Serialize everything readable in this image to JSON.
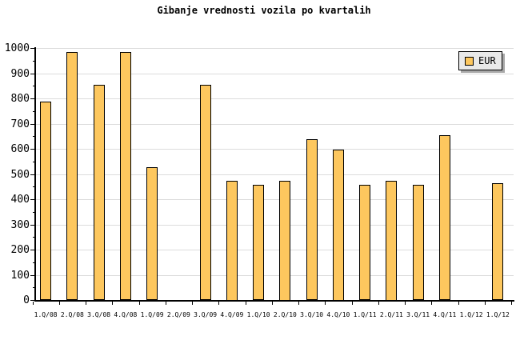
{
  "title": "Gibanje vrednosti vozila po kvartalih",
  "legend": {
    "label": "EUR"
  },
  "colors": {
    "bar_fill": "#FDC75E",
    "bar_border": "#000000",
    "gridline": "#DCDCDC",
    "axis": "#000000",
    "legend_bg": "#E9E9E9",
    "legend_shadow": "#A8A8A8",
    "background": "#FFFFFF",
    "text": "#000000"
  },
  "chart_data": {
    "type": "bar",
    "title": "Gibanje vrednosti vozila po kvartalih",
    "categories": [
      "1.Q/08",
      "2.Q/08",
      "3.Q/08",
      "4.Q/08",
      "1.Q/09",
      "2.Q/09",
      "3.Q/09",
      "4.Q/09",
      "1.Q/10",
      "2.Q/10",
      "3.Q/10",
      "4.Q/10",
      "1.Q/11",
      "2.Q/11",
      "3.Q/11",
      "4.Q/11",
      "1.Q/12",
      "1.Q/12"
    ],
    "series": [
      {
        "name": "EUR",
        "values": [
          790,
          985,
          855,
          985,
          530,
          0,
          855,
          475,
          460,
          475,
          640,
          600,
          460,
          475,
          460,
          655,
          0,
          465
        ]
      }
    ],
    "xlabel": "",
    "ylabel": "",
    "ylim": [
      0,
      1000
    ],
    "ytick_interval": 100,
    "minor_tick_interval": 50,
    "grid": true,
    "legend_position": "top-right",
    "legend_entries": [
      "EUR"
    ]
  }
}
